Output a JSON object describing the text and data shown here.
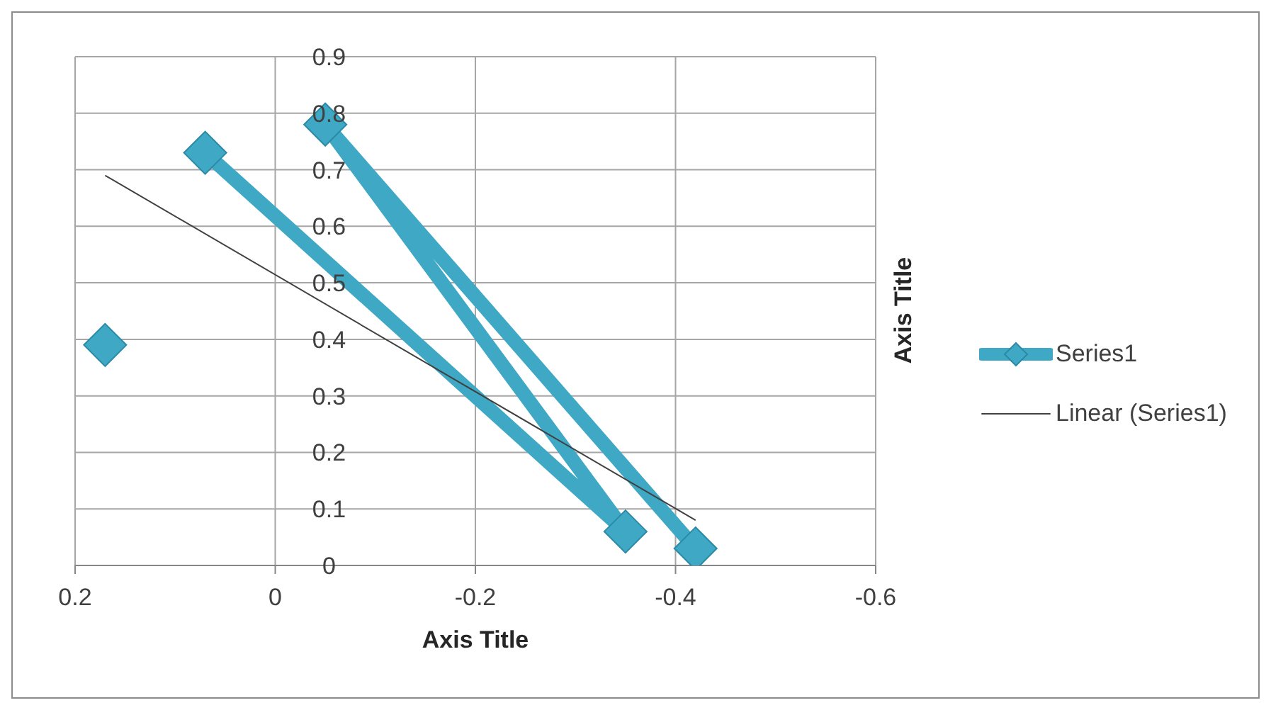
{
  "chart_data": {
    "type": "line",
    "xlabel": "Axis Title",
    "ylabel": "Axis Title",
    "xlim": [
      0.2,
      -0.6
    ],
    "xticks": [
      0.2,
      0,
      -0.2,
      -0.4,
      -0.6
    ],
    "ylim": [
      0,
      0.9
    ],
    "yticks": [
      0,
      0.1,
      0.2,
      0.3,
      0.4,
      0.5,
      0.6,
      0.7,
      0.8,
      0.9
    ],
    "grid": true,
    "legend": "right",
    "marker": "diamond",
    "line_style": "solid",
    "series": [
      {
        "name": "Series1",
        "color": "#3fa9c5",
        "x": [
          0.17,
          null,
          0.07,
          -0.35,
          -0.05,
          -0.42
        ],
        "values": [
          0.39,
          null,
          0.73,
          0.06,
          0.78,
          0.03
        ]
      },
      {
        "name": "Linear (Series1)",
        "type": "line",
        "color": "#404040",
        "marker": "none",
        "x": [
          0.17,
          -0.42
        ],
        "values": [
          0.69,
          0.08
        ]
      }
    ]
  }
}
